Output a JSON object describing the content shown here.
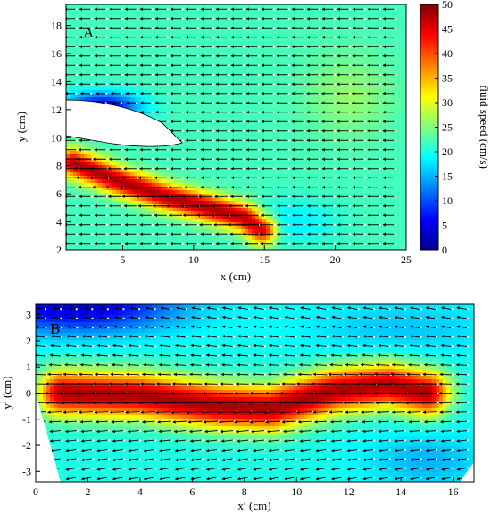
{
  "chart_data": [
    {
      "type": "heatmap",
      "panel_label": "A",
      "xlabel": "x (cm)",
      "ylabel": "y (cm)",
      "xlim": [
        1,
        25
      ],
      "ylim": [
        2,
        19.5
      ],
      "xticks": [
        5,
        10,
        15,
        20,
        25
      ],
      "yticks": [
        2,
        4,
        6,
        8,
        10,
        12,
        14,
        16,
        18
      ],
      "overlay": "velocity vector field (arrows pointing in -x direction)",
      "features": {
        "jet_core_speed": 48,
        "jet_path": [
          [
            1.5,
            8.2
          ],
          [
            5.0,
            6.8
          ],
          [
            8.0,
            5.8
          ],
          [
            11.0,
            5.0
          ],
          [
            13.5,
            4.3
          ],
          [
            14.8,
            3.4
          ]
        ],
        "jet_half_width_cm": 0.7,
        "background_speed": 22,
        "low_speed_region": "upper wake around body (y 10-13, x 1-5)",
        "body": "white fish body silhouette (x 1-9.3, y 9.6-12.5)"
      }
    },
    {
      "type": "heatmap",
      "panel_label": "B",
      "xlabel": "x′ (cm)",
      "ylabel": "y′ (cm)",
      "xlim": [
        0,
        16.8
      ],
      "ylim": [
        -3.4,
        3.4
      ],
      "xticks": [
        0,
        2,
        4,
        6,
        8,
        10,
        12,
        14,
        16
      ],
      "yticks": [
        -3,
        -2,
        -1,
        0,
        1,
        2,
        3
      ],
      "overlay": "velocity vector field (arrows pointing in -x′ direction)",
      "features": {
        "jet_core_speed": 48,
        "jet_path": [
          [
            1.0,
            0.0
          ],
          [
            4.0,
            -0.1
          ],
          [
            7.0,
            -0.5
          ],
          [
            9.0,
            -0.6
          ],
          [
            11.5,
            0.1
          ],
          [
            13.5,
            0.3
          ],
          [
            15.0,
            0.0
          ]
        ],
        "jet_half_width_cm": 0.6,
        "background_speed": 20,
        "low_speed_region": "upper-left corner (x′ 0-6, y′ 2.3-3.4)"
      }
    }
  ],
  "colorbar": {
    "label": "fluid speed (cm/s)",
    "min": 0,
    "max": 50,
    "ticks": [
      0,
      5,
      10,
      15,
      20,
      25,
      30,
      35,
      40,
      45,
      50
    ],
    "colormap": "jet",
    "colors": [
      "#00008f",
      "#0000ff",
      "#0080ff",
      "#00ffff",
      "#80ff80",
      "#ffff00",
      "#ff8000",
      "#ff0000",
      "#800000"
    ]
  }
}
